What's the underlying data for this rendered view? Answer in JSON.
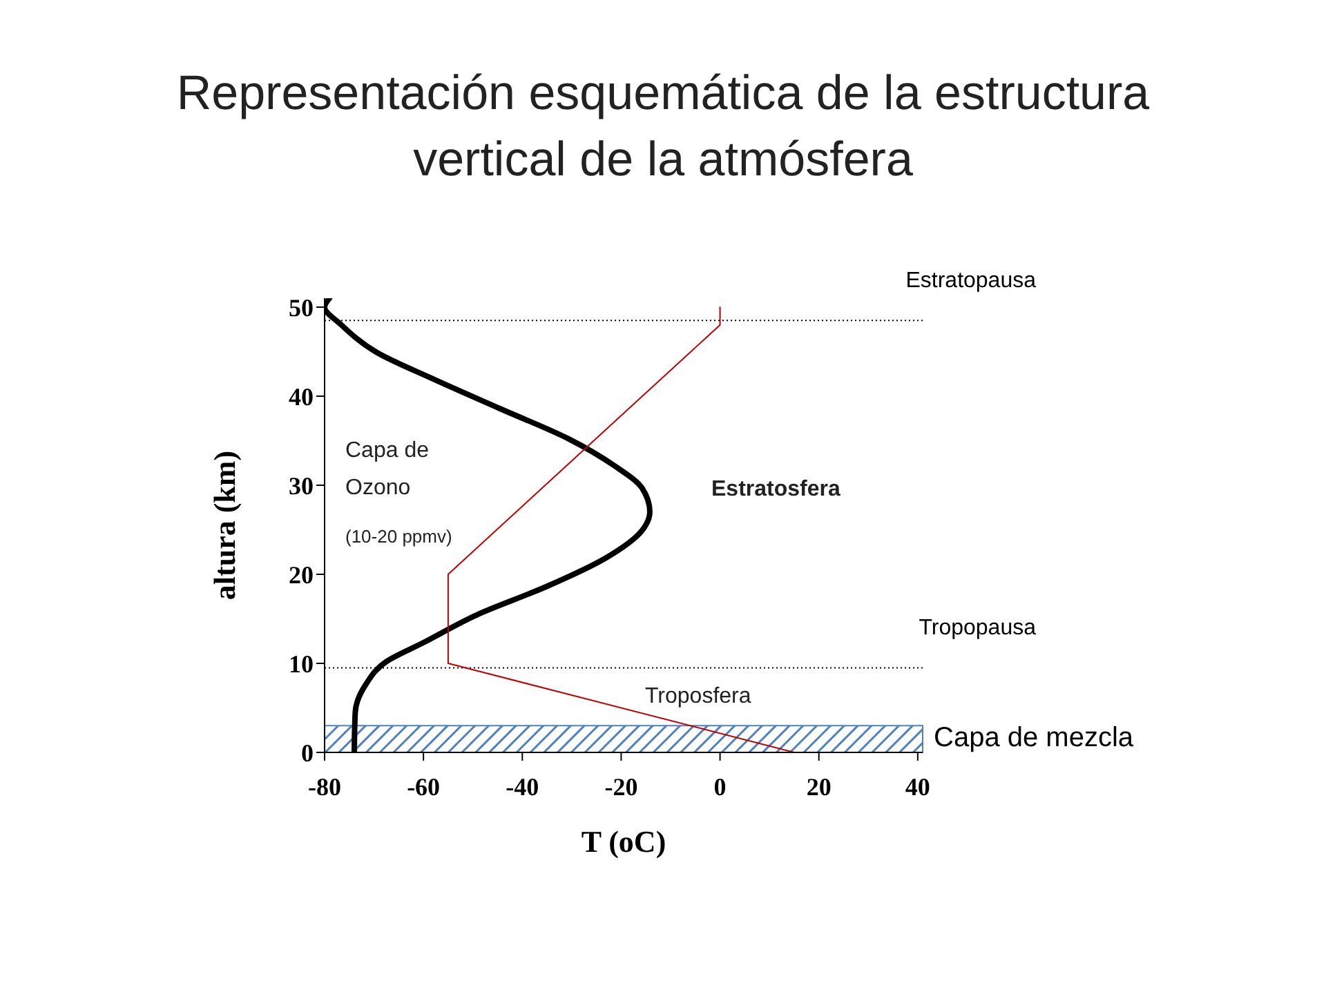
{
  "chart_data": {
    "type": "line",
    "title": "Representación esquemática de la estructura vertical de la atmósfera",
    "xlabel": "T (oC)",
    "ylabel": "altura (km)",
    "xlim": [
      -80,
      41
    ],
    "ylim": [
      0,
      51
    ],
    "xticks": [
      -80,
      -60,
      -40,
      -20,
      0,
      20,
      40
    ],
    "yticks": [
      0,
      10,
      20,
      30,
      40,
      50
    ],
    "marker": "none",
    "line_style": "solid",
    "series": [
      {
        "color": "#000000",
        "x": [
          -74,
          -73.8,
          -71.7,
          -67.5,
          -60.1,
          -49,
          -35.2,
          -23.2,
          -15.8,
          -14.2,
          -15.8,
          -21.4,
          -30.6,
          -44.5,
          -58.3,
          -69.4,
          -76.8,
          -80,
          -79
        ],
        "values": [
          0,
          4.5,
          7.6,
          10.2,
          12.3,
          15.5,
          18.6,
          21.8,
          24.9,
          27,
          29.7,
          32.2,
          35.2,
          38.6,
          42,
          44.9,
          48.1,
          50,
          51
        ]
      },
      {
        "color": "#c00000",
        "x": [
          15,
          -55,
          -55,
          0,
          0
        ],
        "values": [
          0,
          10,
          20,
          48,
          50
        ]
      }
    ],
    "ref_lines": [
      {
        "axis": "y",
        "value": 9.5,
        "label": "Tropopausa",
        "color": "#000000",
        "line_style": "dotted"
      },
      {
        "axis": "y",
        "value": 48.5,
        "label": "Estratopausa",
        "color": "#000000",
        "line_style": "dotted"
      }
    ],
    "bands": [
      {
        "axis": "y",
        "from": 0,
        "to": 3,
        "label": "Capa de mezcla",
        "color": "#4f81bd"
      }
    ],
    "annotations": [
      "Capa de Ozono",
      "(10-20 ppmv)",
      "Estratosfera",
      "Troposfera"
    ]
  }
}
